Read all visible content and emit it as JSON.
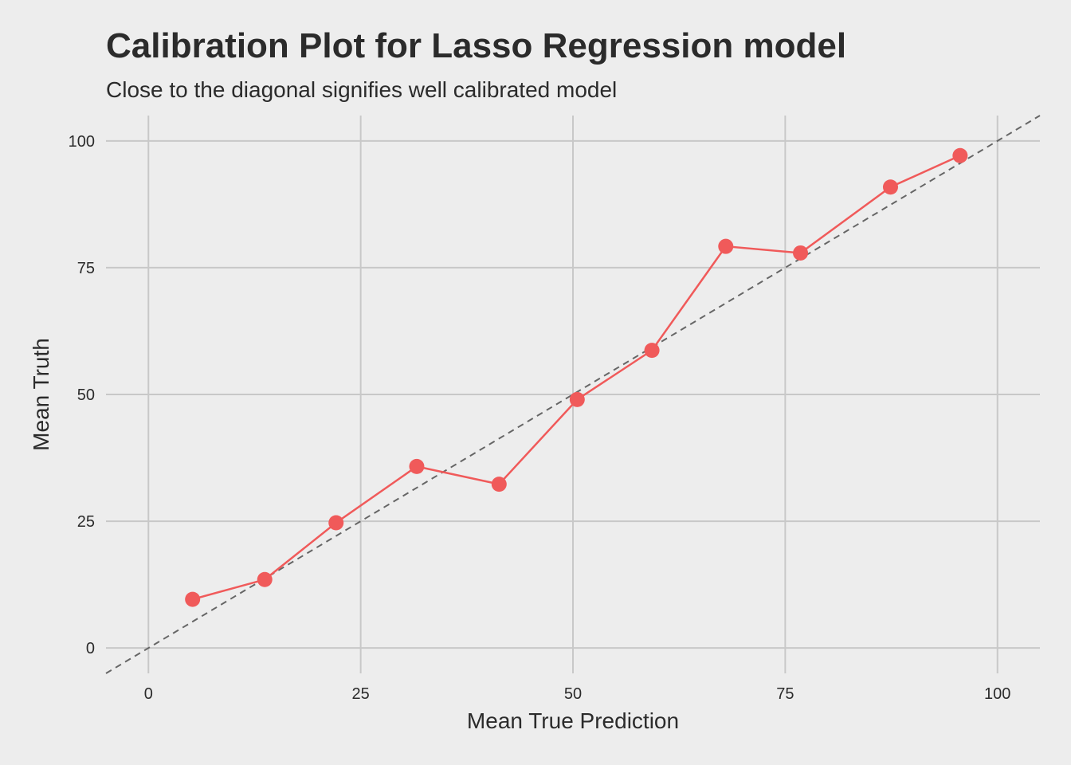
{
  "chart_data": {
    "type": "line",
    "title": "Calibration Plot for Lasso Regression model",
    "subtitle": "Close to the diagonal signifies well calibrated model",
    "xlabel": "Mean True Prediction",
    "ylabel": "Mean Truth",
    "xlim": [
      -5,
      105
    ],
    "ylim": [
      -5,
      105
    ],
    "xticks": [
      0,
      25,
      50,
      75,
      100
    ],
    "yticks": [
      0,
      25,
      50,
      75,
      100
    ],
    "grid": true,
    "reference_line": "diagonal y = x (dashed)",
    "colors": {
      "series": "#f05a5a",
      "reference": "#666666",
      "background": "#ededed",
      "grid": "#c8c8c8"
    },
    "series": [
      {
        "x": [
          5.2,
          13.7,
          22.1,
          31.6,
          41.3,
          50.5,
          59.3,
          68.0,
          76.8,
          87.4,
          95.6
        ],
        "y": [
          9.6,
          13.5,
          24.7,
          35.8,
          32.3,
          49.0,
          58.7,
          79.2,
          77.9,
          90.9,
          97.1
        ]
      }
    ]
  }
}
